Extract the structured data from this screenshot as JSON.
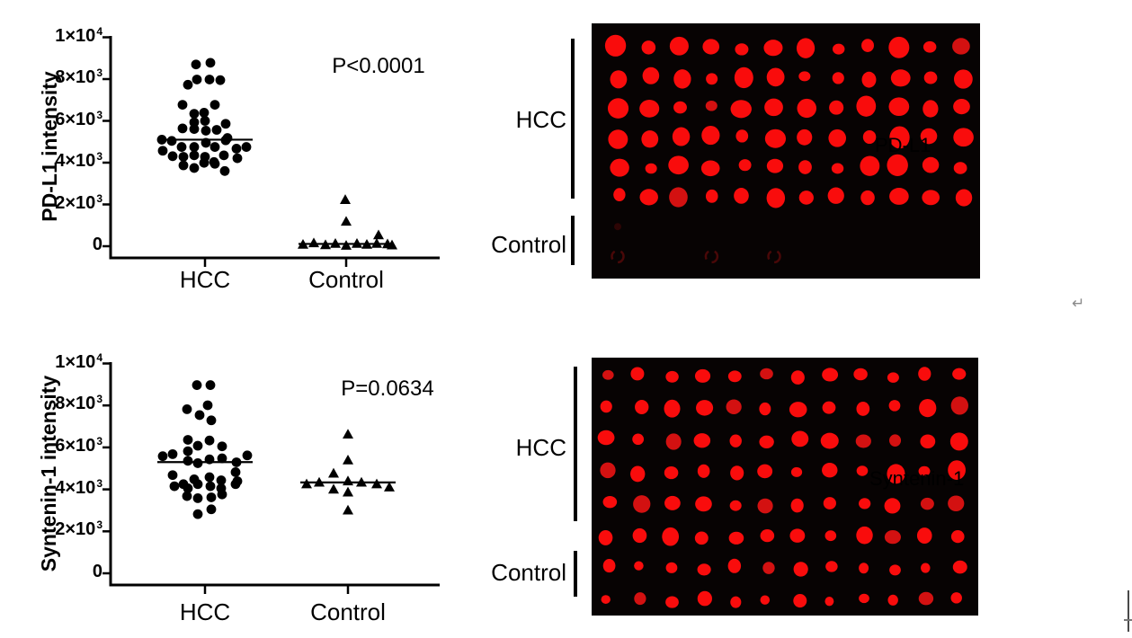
{
  "colors": {
    "background": "#ffffff",
    "axis": "#000000",
    "marker": "#000000",
    "blot_bg": "#070303",
    "dot_red": "#f90c0c",
    "dot_red_dark": "#d31111",
    "faint_ring": "#4d0808"
  },
  "artifacts": {
    "paragraph_mark": "↵"
  },
  "chart_data": [
    {
      "type": "scatter",
      "id": "pdl1-scatter",
      "ylabel": "PD-L1  intensity",
      "annotation": "P<0.0001",
      "categories": [
        "HCC",
        "Control"
      ],
      "ylim": [
        0,
        10000
      ],
      "grid": false,
      "yticks": [
        {
          "v": 0,
          "base": "0",
          "sup": ""
        },
        {
          "v": 2000,
          "base": "2×10",
          "sup": "3"
        },
        {
          "v": 4000,
          "base": "4×10",
          "sup": "3"
        },
        {
          "v": 6000,
          "base": "6×10",
          "sup": "3"
        },
        {
          "v": 8000,
          "base": "8×10",
          "sup": "3"
        },
        {
          "v": 10000,
          "base": "1×10",
          "sup": "4"
        }
      ],
      "series": [
        {
          "name": "HCC",
          "marker": "circle",
          "median": 5100,
          "points": [
            [
              -10,
              8700
            ],
            [
              6,
              8780
            ],
            [
              -19,
              7730
            ],
            [
              -9,
              7980
            ],
            [
              5,
              7980
            ],
            [
              17,
              7950
            ],
            [
              -25,
              6770
            ],
            [
              11,
              6770
            ],
            [
              -12,
              6340
            ],
            [
              -1,
              6390
            ],
            [
              -12,
              5930
            ],
            [
              0,
              6000
            ],
            [
              23,
              5860
            ],
            [
              -25,
              5640
            ],
            [
              -12,
              5610
            ],
            [
              1,
              5530
            ],
            [
              13,
              5570
            ],
            [
              25,
              5180
            ],
            [
              -48,
              5100
            ],
            [
              -37,
              5040
            ],
            [
              -26,
              4750
            ],
            [
              -12,
              4750
            ],
            [
              1,
              4950
            ],
            [
              11,
              4750
            ],
            [
              23,
              5070
            ],
            [
              -47,
              4570
            ],
            [
              -36,
              4310
            ],
            [
              -24,
              4280
            ],
            [
              -12,
              4350
            ],
            [
              0,
              4280
            ],
            [
              10,
              4030
            ],
            [
              21,
              4350
            ],
            [
              35,
              4670
            ],
            [
              36,
              4210
            ],
            [
              46,
              4750
            ],
            [
              -24,
              3870
            ],
            [
              -12,
              3745
            ],
            [
              -1,
              3990
            ],
            [
              11,
              3945
            ],
            [
              22,
              3600
            ]
          ]
        },
        {
          "name": "Control",
          "marker": "triangle",
          "median": 110,
          "points": [
            [
              -1,
              2220
            ],
            [
              0,
              1180
            ],
            [
              36,
              530
            ],
            [
              -48,
              80
            ],
            [
              -36,
              150
            ],
            [
              -23,
              60
            ],
            [
              -12,
              120
            ],
            [
              0,
              30
            ],
            [
              12,
              120
            ],
            [
              23,
              80
            ],
            [
              34,
              120
            ],
            [
              46,
              100
            ],
            [
              51,
              50
            ]
          ]
        }
      ]
    },
    {
      "type": "scatter",
      "id": "syntenin1-scatter",
      "ylabel": "Syntenin-1 intensity",
      "annotation": "P=0.0634",
      "categories": [
        "HCC",
        "Control"
      ],
      "ylim": [
        0,
        10000
      ],
      "grid": false,
      "yticks": [
        {
          "v": 0,
          "base": "0",
          "sup": ""
        },
        {
          "v": 2000,
          "base": "2×10",
          "sup": "3"
        },
        {
          "v": 4000,
          "base": "4×10",
          "sup": "3"
        },
        {
          "v": 6000,
          "base": "6×10",
          "sup": "3"
        },
        {
          "v": 8000,
          "base": "8×10",
          "sup": "3"
        },
        {
          "v": 10000,
          "base": "1×10",
          "sup": "4"
        }
      ],
      "series": [
        {
          "name": "HCC",
          "marker": "circle",
          "median": 5300,
          "points": [
            [
              -9,
              8970
            ],
            [
              6,
              8970
            ],
            [
              -20,
              7820
            ],
            [
              3,
              8010
            ],
            [
              -6,
              7540
            ],
            [
              7,
              7290
            ],
            [
              -19,
              6360
            ],
            [
              5,
              6330
            ],
            [
              -8,
              6080
            ],
            [
              19,
              6050
            ],
            [
              -19,
              5820
            ],
            [
              -47,
              5580
            ],
            [
              -36,
              5680
            ],
            [
              -19,
              5360
            ],
            [
              -8,
              5250
            ],
            [
              5,
              5430
            ],
            [
              19,
              5480
            ],
            [
              35,
              5290
            ],
            [
              47,
              5620
            ],
            [
              -36,
              4680
            ],
            [
              -24,
              4250
            ],
            [
              -12,
              4480
            ],
            [
              5,
              4580
            ],
            [
              18,
              4430
            ],
            [
              34,
              4820
            ],
            [
              36,
              4390
            ],
            [
              -34,
              4150
            ],
            [
              -19,
              4050
            ],
            [
              -8,
              4250
            ],
            [
              6,
              4150
            ],
            [
              18,
              4050
            ],
            [
              34,
              4250
            ],
            [
              -20,
              3680
            ],
            [
              -8,
              3580
            ],
            [
              7,
              3620
            ],
            [
              19,
              3760
            ],
            [
              -8,
              2820
            ],
            [
              7,
              3050
            ]
          ]
        },
        {
          "name": "Control",
          "marker": "triangle",
          "median": 4330,
          "points": [
            [
              0,
              6620
            ],
            [
              0,
              5390
            ],
            [
              -16,
              4760
            ],
            [
              -46,
              4250
            ],
            [
              -32,
              4330
            ],
            [
              0,
              4390
            ],
            [
              15,
              4330
            ],
            [
              32,
              4250
            ],
            [
              46,
              4100
            ],
            [
              -16,
              4000
            ],
            [
              0,
              3860
            ],
            [
              0,
              3000
            ]
          ]
        }
      ]
    },
    {
      "type": "dot_blot",
      "id": "pdl1-blot",
      "label": "PD-L1",
      "rows": 8,
      "cols": 12,
      "bright_rows": 6,
      "group_brackets": [
        {
          "label": "HCC",
          "rows": [
            1,
            6
          ]
        },
        {
          "label": "Control",
          "rows": [
            7,
            8
          ]
        }
      ],
      "faint_marks": [
        {
          "row": 7,
          "col": 1,
          "type": "smudge"
        },
        {
          "row": 8,
          "col": 1,
          "type": "ring"
        },
        {
          "row": 8,
          "col": 4,
          "type": "ring"
        },
        {
          "row": 8,
          "col": 6,
          "type": "ring"
        }
      ]
    },
    {
      "type": "dot_blot",
      "id": "syntenin1-blot",
      "label": "Syntenin-1",
      "rows": 8,
      "cols": 12,
      "bright_rows": 8,
      "group_brackets": [
        {
          "label": "HCC",
          "rows": [
            1,
            5
          ]
        },
        {
          "label": "Control",
          "rows": [
            7,
            8
          ]
        }
      ],
      "faint_marks": []
    }
  ]
}
